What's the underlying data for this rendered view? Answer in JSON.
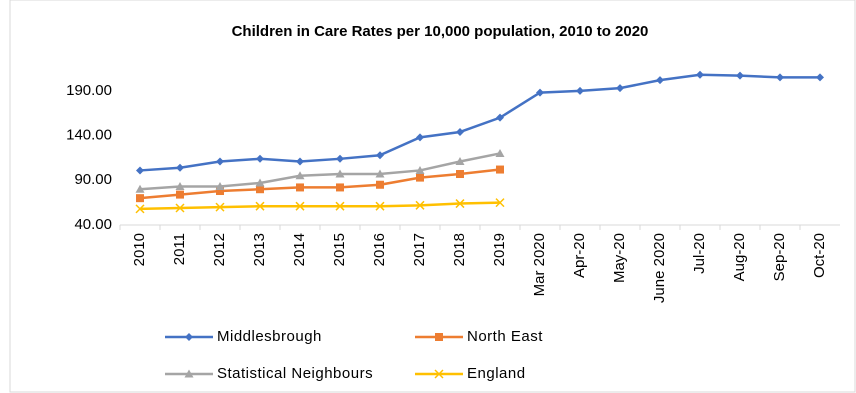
{
  "chart_data": {
    "type": "line",
    "title": "Children in Care Rates per 10,000 population, 2010 to 2020",
    "categories": [
      "2010",
      "2011",
      "2012",
      "2013",
      "2014",
      "2015",
      "2016",
      "2017",
      "2018",
      "2019",
      "Mar 2020",
      "Apr-20",
      "May-20",
      "June 2020",
      "Jul-20",
      "Aug-20",
      "Sep-20",
      "Oct-20"
    ],
    "series": [
      {
        "name": "Middlesbrough",
        "color": "#4472c4",
        "marker": "diamond",
        "values": [
          101,
          104,
          111,
          114,
          111,
          114,
          118,
          138,
          144,
          160,
          188,
          190,
          193,
          202,
          208,
          207,
          205,
          205
        ]
      },
      {
        "name": "North East",
        "color": "#ed7d31",
        "marker": "square",
        "values": [
          70,
          74,
          78,
          80,
          82,
          82,
          85,
          93,
          97,
          102,
          null,
          null,
          null,
          null,
          null,
          null,
          null,
          null
        ]
      },
      {
        "name": "Statistical Neighbours",
        "color": "#a5a5a5",
        "marker": "triangle",
        "values": [
          80,
          83,
          83,
          87,
          95,
          97,
          97,
          101,
          111,
          120,
          null,
          null,
          null,
          null,
          null,
          null,
          null,
          null
        ]
      },
      {
        "name": "England",
        "color": "#ffc000",
        "marker": "x",
        "values": [
          58,
          59,
          60,
          61,
          61,
          61,
          61,
          62,
          64,
          65,
          null,
          null,
          null,
          null,
          null,
          null,
          null,
          null
        ]
      }
    ],
    "ylim": [
      40,
      220
    ],
    "yticks": [
      {
        "value": 40,
        "label": "40.00"
      },
      {
        "value": 90,
        "label": "90.00"
      },
      {
        "value": 140,
        "label": "140.00"
      },
      {
        "value": 190,
        "label": "190.00"
      }
    ],
    "grid": false
  }
}
